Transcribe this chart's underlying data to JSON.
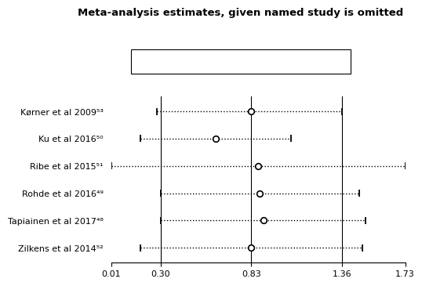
{
  "title": "Meta-analysis estimates, given named study is omitted",
  "studies": [
    "Kørner et al 2009⁵³",
    "Ku et al 2016⁵⁰",
    "Ribe et al 2015⁵¹",
    "Rohde et al 2016⁴⁹",
    "Tapiainen et al 2017⁴⁸",
    "Zilkens et al 2014⁵²"
  ],
  "estimates": [
    0.83,
    0.62,
    0.87,
    0.88,
    0.9,
    0.83
  ],
  "lower_ci": [
    0.28,
    0.18,
    0.01,
    0.3,
    0.3,
    0.18
  ],
  "upper_ci": [
    1.36,
    1.06,
    1.73,
    1.46,
    1.5,
    1.48
  ],
  "xlim": [
    0.01,
    1.73
  ],
  "xticks": [
    0.01,
    0.3,
    0.83,
    1.36,
    1.73
  ],
  "xtick_labels": [
    "0.01",
    "0.30",
    "0.83",
    "1.36",
    "1.73"
  ],
  "vlines": [
    0.3,
    0.83,
    1.36
  ],
  "background_color": "#ffffff",
  "text_color": "#000000",
  "title_fontsize": 9.5,
  "label_fontsize": 8,
  "tick_fontsize": 8
}
